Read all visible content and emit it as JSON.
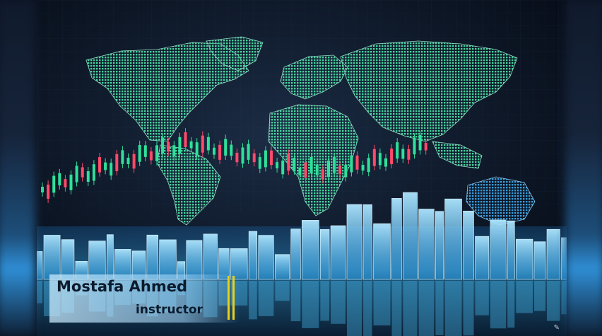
{
  "caption": {
    "name": "Mostafa Ahmed",
    "role": "instructor"
  },
  "colors": {
    "background": "#0a1220",
    "continents": "#3fd39a",
    "candle_up": "#2fe09a",
    "candle_down": "#ff4a6a",
    "skyline": "#4fc8ff",
    "accent": "#e8d21a",
    "caption_text": "#0b1a2c"
  },
  "icons": {
    "watermark": "signature-mark-icon"
  }
}
